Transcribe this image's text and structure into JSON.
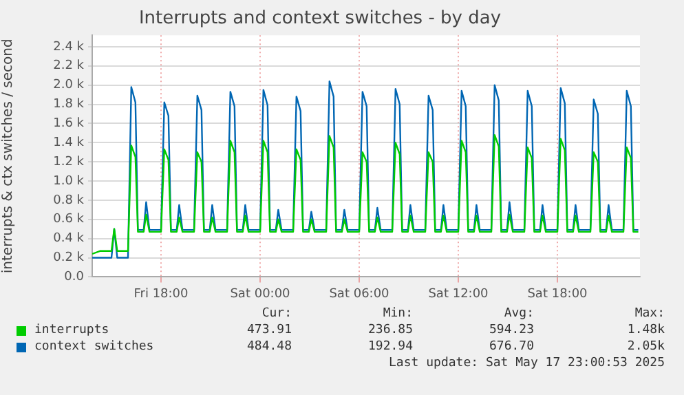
{
  "chart_data": {
    "type": "line",
    "title": "Interrupts and context switches - by day",
    "ylabel": "interrupts & ctx switches / second",
    "x": [
      "2025-05-16T13:50",
      "2025-05-16T14:18",
      "2025-05-16T15:00",
      "2025-05-16T15:10",
      "2025-05-16T15:21",
      "2025-05-16T16:00",
      "2025-05-16T16:12",
      "2025-05-16T16:27",
      "2025-05-16T16:36",
      "2025-05-16T16:57",
      "2025-05-16T17:06",
      "2025-05-16T17:18",
      "2025-05-16T18:00",
      "2025-05-16T18:12",
      "2025-05-16T18:27",
      "2025-05-16T18:36",
      "2025-05-16T18:57",
      "2025-05-16T19:06",
      "2025-05-16T19:18",
      "2025-05-16T20:00",
      "2025-05-16T20:12",
      "2025-05-16T20:27",
      "2025-05-16T20:36",
      "2025-05-16T20:57",
      "2025-05-16T21:06",
      "2025-05-16T21:18",
      "2025-05-16T22:00",
      "2025-05-16T22:12",
      "2025-05-16T22:27",
      "2025-05-16T22:36",
      "2025-05-16T22:57",
      "2025-05-16T23:06",
      "2025-05-16T23:18",
      "2025-05-17T00:00",
      "2025-05-17T00:12",
      "2025-05-17T00:27",
      "2025-05-17T00:36",
      "2025-05-17T00:57",
      "2025-05-17T01:06",
      "2025-05-17T01:18",
      "2025-05-17T02:00",
      "2025-05-17T02:12",
      "2025-05-17T02:27",
      "2025-05-17T02:36",
      "2025-05-17T02:57",
      "2025-05-17T03:06",
      "2025-05-17T03:18",
      "2025-05-17T04:00",
      "2025-05-17T04:12",
      "2025-05-17T04:27",
      "2025-05-17T04:36",
      "2025-05-17T04:57",
      "2025-05-17T05:06",
      "2025-05-17T05:18",
      "2025-05-17T06:00",
      "2025-05-17T06:12",
      "2025-05-17T06:27",
      "2025-05-17T06:36",
      "2025-05-17T06:57",
      "2025-05-17T07:06",
      "2025-05-17T07:18",
      "2025-05-17T08:00",
      "2025-05-17T08:12",
      "2025-05-17T08:27",
      "2025-05-17T08:36",
      "2025-05-17T08:57",
      "2025-05-17T09:06",
      "2025-05-17T09:18",
      "2025-05-17T10:00",
      "2025-05-17T10:12",
      "2025-05-17T10:27",
      "2025-05-17T10:36",
      "2025-05-17T10:57",
      "2025-05-17T11:06",
      "2025-05-17T11:18",
      "2025-05-17T12:00",
      "2025-05-17T12:12",
      "2025-05-17T12:27",
      "2025-05-17T12:36",
      "2025-05-17T12:57",
      "2025-05-17T13:06",
      "2025-05-17T13:18",
      "2025-05-17T14:00",
      "2025-05-17T14:12",
      "2025-05-17T14:27",
      "2025-05-17T14:36",
      "2025-05-17T14:57",
      "2025-05-17T15:06",
      "2025-05-17T15:18",
      "2025-05-17T16:00",
      "2025-05-17T16:12",
      "2025-05-17T16:27",
      "2025-05-17T16:36",
      "2025-05-17T16:57",
      "2025-05-17T17:06",
      "2025-05-17T17:18",
      "2025-05-17T18:00",
      "2025-05-17T18:12",
      "2025-05-17T18:27",
      "2025-05-17T18:36",
      "2025-05-17T18:57",
      "2025-05-17T19:06",
      "2025-05-17T19:18",
      "2025-05-17T20:00",
      "2025-05-17T20:12",
      "2025-05-17T20:27",
      "2025-05-17T20:36",
      "2025-05-17T20:57",
      "2025-05-17T21:06",
      "2025-05-17T21:18",
      "2025-05-17T22:00",
      "2025-05-17T22:12",
      "2025-05-17T22:27",
      "2025-05-17T22:36",
      "2025-05-17T22:54"
    ],
    "series": [
      {
        "name": "interrupts",
        "color": "#00cc00",
        "values": [
          240,
          270,
          270,
          500,
          270,
          270,
          1370,
          1250,
          470,
          470,
          650,
          470,
          470,
          1330,
          1220,
          470,
          470,
          620,
          470,
          470,
          1300,
          1200,
          470,
          470,
          620,
          470,
          470,
          1420,
          1300,
          470,
          470,
          640,
          470,
          470,
          1420,
          1300,
          470,
          470,
          600,
          470,
          470,
          1330,
          1220,
          470,
          470,
          600,
          470,
          470,
          1470,
          1350,
          470,
          470,
          600,
          470,
          470,
          1300,
          1200,
          470,
          470,
          620,
          470,
          470,
          1400,
          1280,
          470,
          470,
          640,
          470,
          470,
          1300,
          1200,
          470,
          470,
          640,
          470,
          470,
          1420,
          1300,
          470,
          470,
          640,
          470,
          470,
          1480,
          1360,
          470,
          470,
          650,
          470,
          470,
          1350,
          1240,
          470,
          470,
          640,
          470,
          470,
          1440,
          1320,
          470,
          470,
          640,
          470,
          470,
          1300,
          1200,
          470,
          470,
          640,
          470,
          470,
          1350,
          1240,
          470,
          470
        ]
      },
      {
        "name": "context switches",
        "color": "#0066b3",
        "values": [
          200,
          200,
          200,
          500,
          200,
          200,
          1980,
          1820,
          490,
          490,
          780,
          490,
          490,
          1820,
          1680,
          490,
          490,
          750,
          490,
          490,
          1890,
          1740,
          490,
          490,
          750,
          490,
          490,
          1930,
          1780,
          490,
          490,
          750,
          490,
          490,
          1950,
          1790,
          490,
          490,
          700,
          490,
          490,
          1880,
          1730,
          490,
          490,
          680,
          490,
          490,
          2040,
          1880,
          490,
          490,
          700,
          490,
          490,
          1930,
          1780,
          490,
          490,
          720,
          490,
          490,
          1960,
          1800,
          490,
          490,
          750,
          490,
          490,
          1890,
          1740,
          490,
          490,
          750,
          490,
          490,
          1940,
          1780,
          490,
          490,
          750,
          490,
          490,
          2000,
          1840,
          490,
          490,
          780,
          490,
          490,
          1940,
          1780,
          490,
          490,
          750,
          490,
          490,
          1970,
          1810,
          490,
          490,
          750,
          490,
          490,
          1850,
          1700,
          490,
          490,
          750,
          490,
          490,
          1940,
          1780,
          490,
          490
        ]
      }
    ],
    "xlim": [
      "2025-05-16T13:50",
      "2025-05-17T23:00"
    ],
    "xticks": [
      {
        "value": "2025-05-16T18:00",
        "label": "Fri 18:00"
      },
      {
        "value": "2025-05-17T00:00",
        "label": "Sat 00:00"
      },
      {
        "value": "2025-05-17T06:00",
        "label": "Sat 06:00"
      },
      {
        "value": "2025-05-17T12:00",
        "label": "Sat 12:00"
      },
      {
        "value": "2025-05-17T18:00",
        "label": "Sat 18:00"
      }
    ],
    "ylim": [
      0,
      2520
    ],
    "yticks": [
      {
        "value": 0,
        "label": "0.0"
      },
      {
        "value": 200,
        "label": "0.2 k"
      },
      {
        "value": 400,
        "label": "0.4 k"
      },
      {
        "value": 600,
        "label": "0.6 k"
      },
      {
        "value": 800,
        "label": "0.8 k"
      },
      {
        "value": 1000,
        "label": "1.0 k"
      },
      {
        "value": 1200,
        "label": "1.2 k"
      },
      {
        "value": 1400,
        "label": "1.4 k"
      },
      {
        "value": 1600,
        "label": "1.6 k"
      },
      {
        "value": 1800,
        "label": "1.8 k"
      },
      {
        "value": 2000,
        "label": "2.0 k"
      },
      {
        "value": 2200,
        "label": "2.2 k"
      },
      {
        "value": 2400,
        "label": "2.4 k"
      }
    ],
    "grid": true,
    "legend": "bottom",
    "marker": "none",
    "line_style": "solid",
    "annotations": [
      "Cur:",
      "Min:",
      "Avg:",
      "Max:",
      "473.91",
      "236.85",
      "594.23",
      "1.48k",
      "484.48",
      "192.94",
      "676.70",
      "2.05k",
      "Last update: Sat May 17 23:00:53 2025"
    ]
  }
}
